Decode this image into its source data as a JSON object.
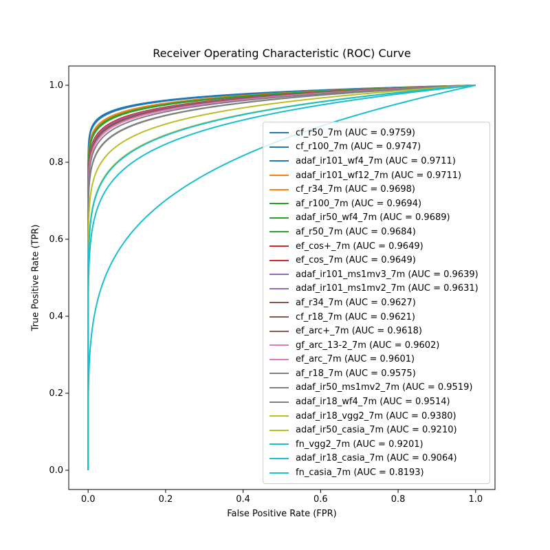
{
  "chart_data": {
    "type": "line",
    "title": "Receiver Operating Characteristic (ROC) Curve",
    "xlabel": "False Positive Rate (FPR)",
    "ylabel": "True Positive Rate (TPR)",
    "x_tick_labels": [
      "0.0",
      "0.2",
      "0.4",
      "0.6",
      "0.8",
      "1.0"
    ],
    "y_tick_labels": [
      "0.0",
      "0.2",
      "0.4",
      "0.6",
      "0.8",
      "1.0"
    ],
    "xlim": [
      -0.05,
      1.05
    ],
    "ylim": [
      -0.05,
      1.05
    ],
    "grid": false,
    "legend_position": "center right",
    "curve_model": "tpr = fpr^((1-auc)/auc), endpoints (0,0) and (1,1)",
    "series": [
      {
        "name": "cf_r50_7m",
        "auc": "0.9759",
        "label": "cf_r50_7m (AUC = 0.9759)",
        "color": "#1f77b4"
      },
      {
        "name": "cf_r100_7m",
        "auc": "0.9747",
        "label": "cf_r100_7m (AUC = 0.9747)",
        "color": "#1f77b4"
      },
      {
        "name": "adaf_ir101_wf4_7m",
        "auc": "0.9711",
        "label": "adaf_ir101_wf4_7m (AUC = 0.9711)",
        "color": "#1f77b4"
      },
      {
        "name": "adaf_ir101_wf12_7m",
        "auc": "0.9711",
        "label": "adaf_ir101_wf12_7m (AUC = 0.9711)",
        "color": "#ff7f0e"
      },
      {
        "name": "cf_r34_7m",
        "auc": "0.9698",
        "label": "cf_r34_7m (AUC = 0.9698)",
        "color": "#ff7f0e"
      },
      {
        "name": "af_r100_7m",
        "auc": "0.9694",
        "label": "af_r100_7m (AUC = 0.9694)",
        "color": "#2ca02c"
      },
      {
        "name": "adaf_ir50_wf4_7m",
        "auc": "0.9689",
        "label": "adaf_ir50_wf4_7m (AUC = 0.9689)",
        "color": "#2ca02c"
      },
      {
        "name": "af_r50_7m",
        "auc": "0.9684",
        "label": "af_r50_7m (AUC = 0.9684)",
        "color": "#2ca02c"
      },
      {
        "name": "ef_cos+_7m",
        "auc": "0.9649",
        "label": "ef_cos+_7m (AUC = 0.9649)",
        "color": "#d62728"
      },
      {
        "name": "ef_cos_7m",
        "auc": "0.9649",
        "label": "ef_cos_7m (AUC = 0.9649)",
        "color": "#d62728"
      },
      {
        "name": "adaf_ir101_ms1mv3_7m",
        "auc": "0.9639",
        "label": "adaf_ir101_ms1mv3_7m (AUC = 0.9639)",
        "color": "#9467bd"
      },
      {
        "name": "adaf_ir101_ms1mv2_7m",
        "auc": "0.9631",
        "label": "adaf_ir101_ms1mv2_7m (AUC = 0.9631)",
        "color": "#9467bd"
      },
      {
        "name": "af_r34_7m",
        "auc": "0.9627",
        "label": "af_r34_7m (AUC = 0.9627)",
        "color": "#8c564b"
      },
      {
        "name": "cf_r18_7m",
        "auc": "0.9621",
        "label": "cf_r18_7m (AUC = 0.9621)",
        "color": "#8c564b"
      },
      {
        "name": "ef_arc+_7m",
        "auc": "0.9618",
        "label": "ef_arc+_7m (AUC = 0.9618)",
        "color": "#8c564b"
      },
      {
        "name": "gf_arc_13-2_7m",
        "auc": "0.9602",
        "label": "gf_arc_13-2_7m (AUC = 0.9602)",
        "color": "#e377c2"
      },
      {
        "name": "ef_arc_7m",
        "auc": "0.9601",
        "label": "ef_arc_7m (AUC = 0.9601)",
        "color": "#e377c2"
      },
      {
        "name": "af_r18_7m",
        "auc": "0.9575",
        "label": "af_r18_7m (AUC = 0.9575)",
        "color": "#7f7f7f"
      },
      {
        "name": "adaf_ir50_ms1mv2_7m",
        "auc": "0.9519",
        "label": "adaf_ir50_ms1mv2_7m (AUC = 0.9519)",
        "color": "#7f7f7f"
      },
      {
        "name": "adaf_ir18_wf4_7m",
        "auc": "0.9514",
        "label": "adaf_ir18_wf4_7m (AUC = 0.9514)",
        "color": "#7f7f7f"
      },
      {
        "name": "adaf_ir18_vgg2_7m",
        "auc": "0.9380",
        "label": "adaf_ir18_vgg2_7m (AUC = 0.9380)",
        "color": "#bcbd22"
      },
      {
        "name": "adaf_ir50_casia_7m",
        "auc": "0.9210",
        "label": "adaf_ir50_casia_7m (AUC = 0.9210)",
        "color": "#bcbd22"
      },
      {
        "name": "fn_vgg2_7m",
        "auc": "0.9201",
        "label": "fn_vgg2_7m (AUC = 0.9201)",
        "color": "#17becf"
      },
      {
        "name": "adaf_ir18_casia_7m",
        "auc": "0.9064",
        "label": "adaf_ir18_casia_7m (AUC = 0.9064)",
        "color": "#17becf"
      },
      {
        "name": "fn_casia_7m",
        "auc": "0.8193",
        "label": "fn_casia_7m (AUC = 0.8193)",
        "color": "#17becf"
      }
    ],
    "colors": {
      "spine": "#000000",
      "legend_border": "#cccccc",
      "text": "#000000"
    }
  }
}
